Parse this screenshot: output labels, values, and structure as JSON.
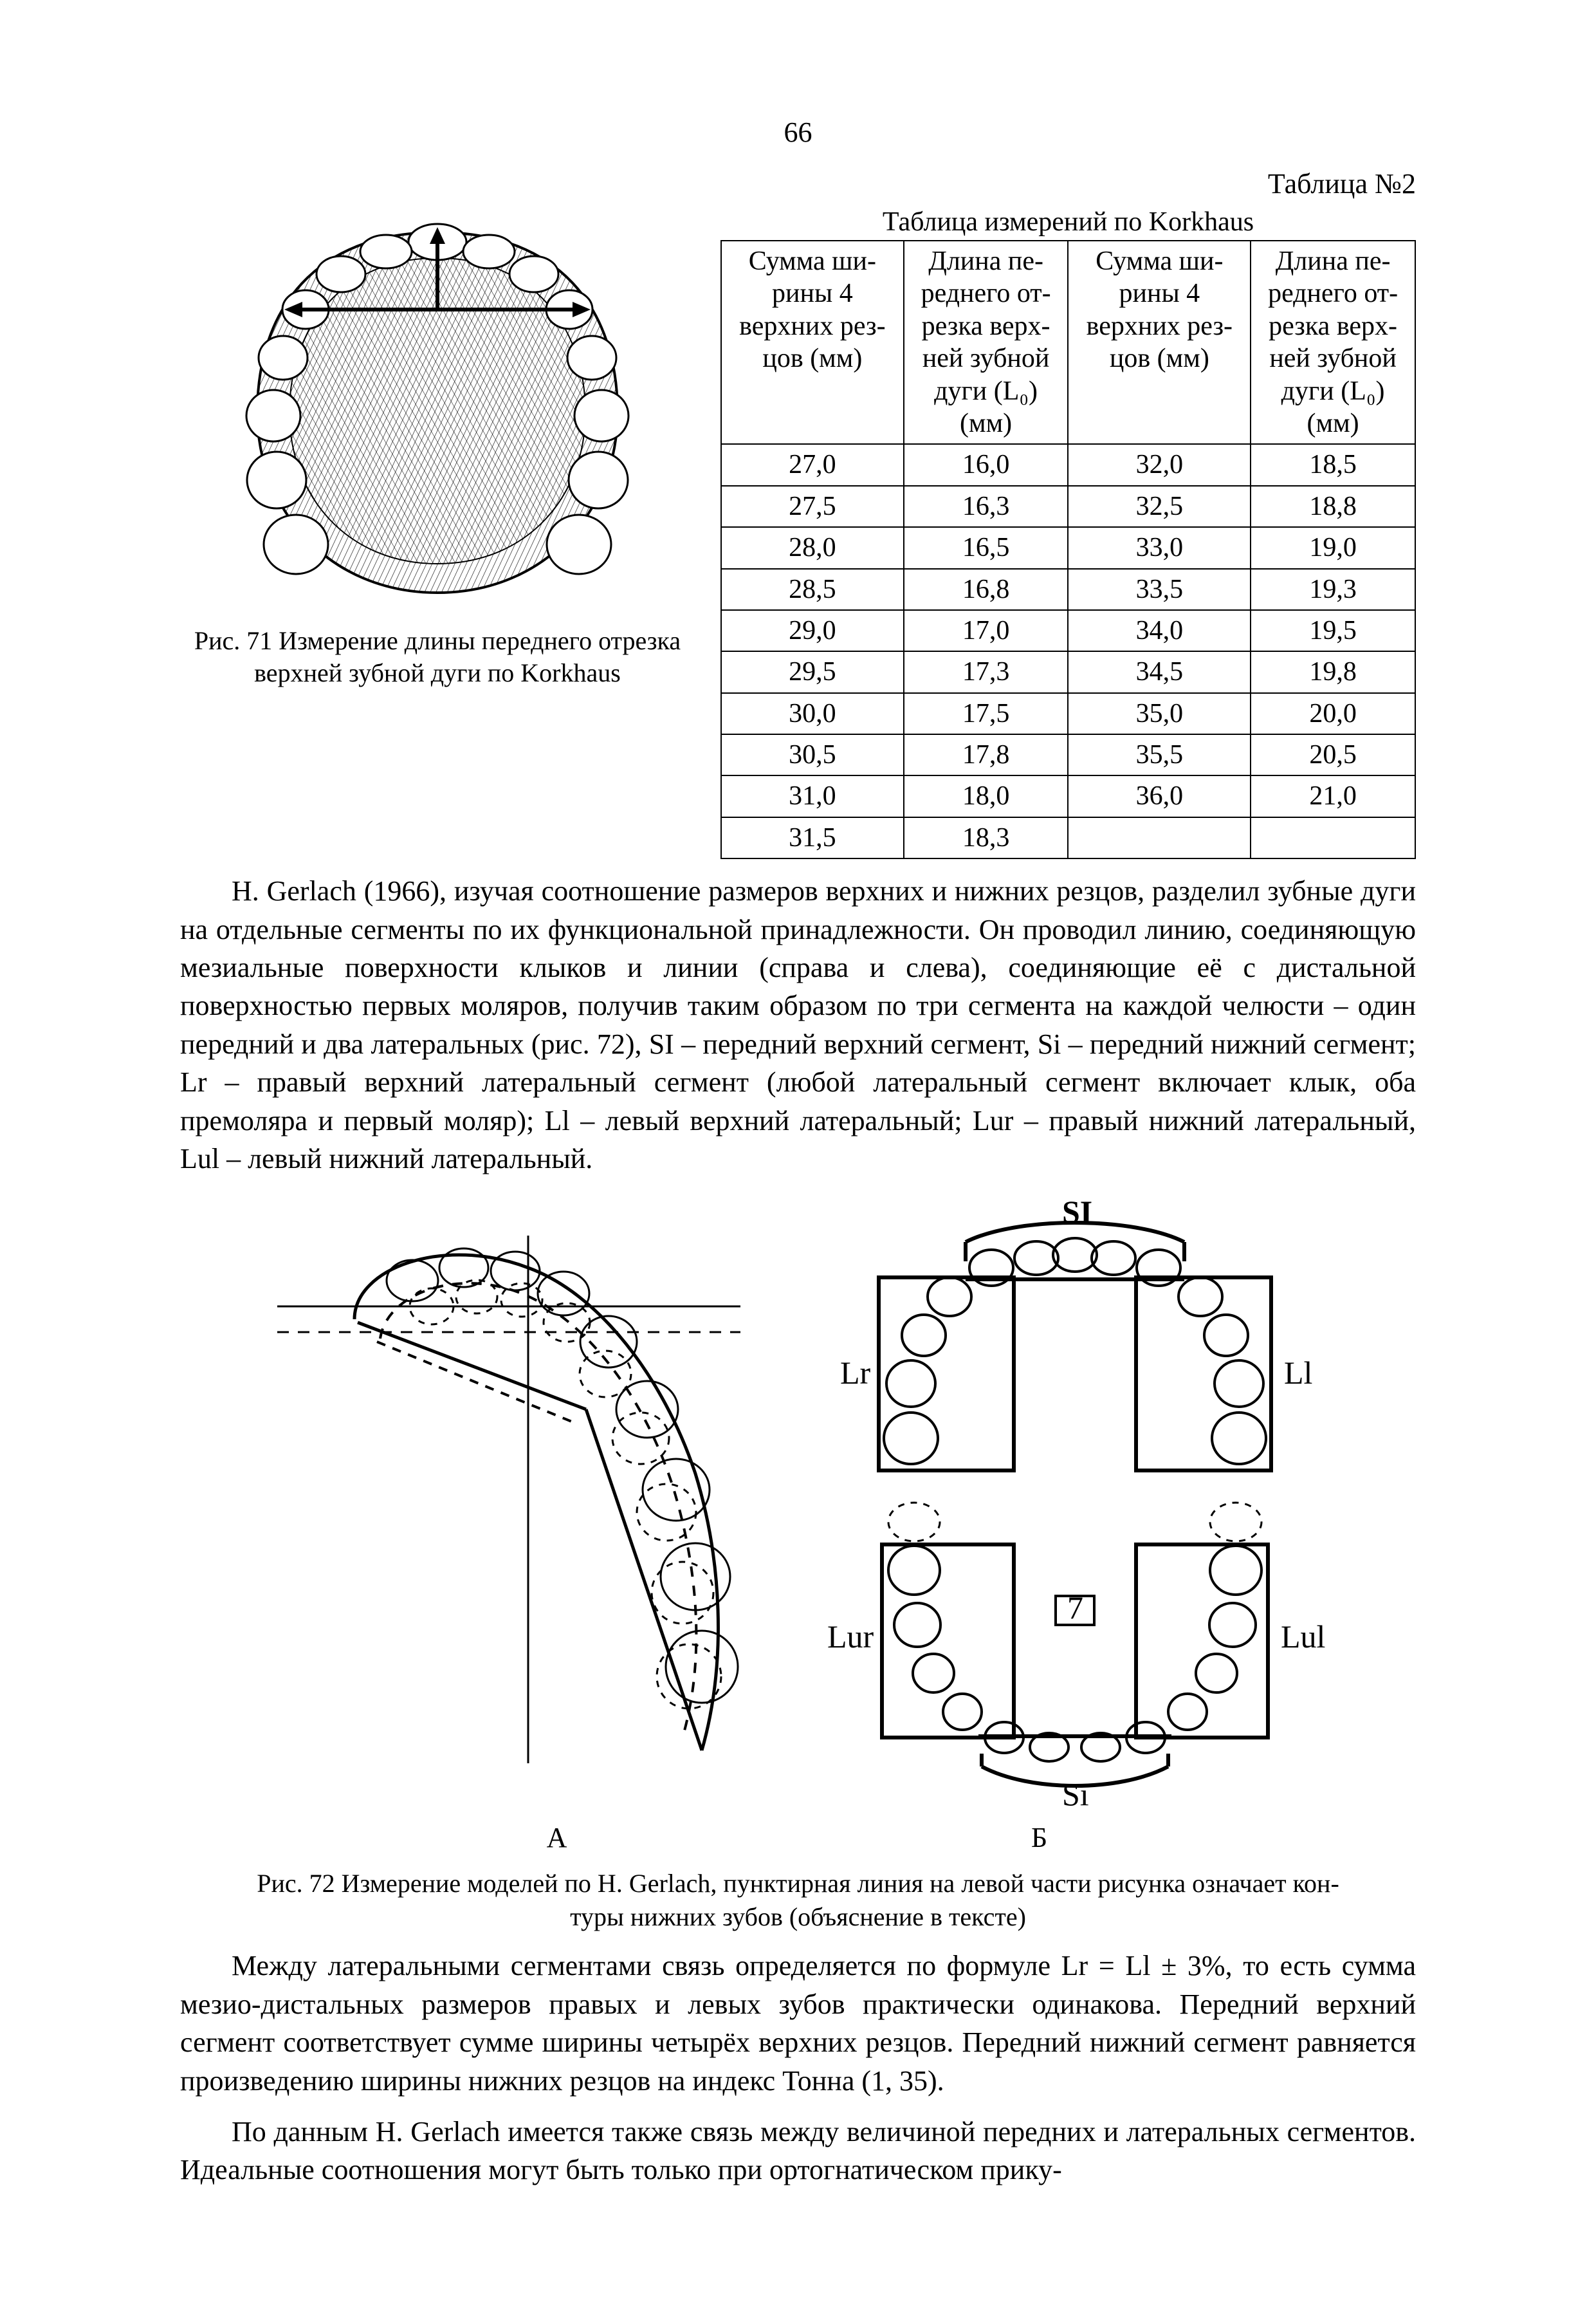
{
  "page_number": "66",
  "table_label": "Таблица №2",
  "fig71_caption_l1": "Рис. 71  Измерение длины переднего отрезка",
  "fig71_caption_l2": "верхней зубной дуги по Korkhaus",
  "table_title": "Таблица измерений по Korkhaus",
  "table": {
    "headers": [
      "Сумма ши-\nрины 4\nверхних рез-\nцов (мм)",
      "Длина пе-\nреднего от-\nрезка верх-\nней зубной\nдуги (L₀)\n(мм)",
      "Сумма ши-\nрины 4\nверхних рез-\nцов (мм)",
      "Длина пе-\nреднего от-\nрезка верх-\nней зубной\nдуги (L₀)\n(мм)"
    ],
    "rows": [
      [
        "27,0",
        "16,0",
        "32,0",
        "18,5"
      ],
      [
        "27,5",
        "16,3",
        "32,5",
        "18,8"
      ],
      [
        "28,0",
        "16,5",
        "33,0",
        "19,0"
      ],
      [
        "28,5",
        "16,8",
        "33,5",
        "19,3"
      ],
      [
        "29,0",
        "17,0",
        "34,0",
        "19,5"
      ],
      [
        "29,5",
        "17,3",
        "34,5",
        "19,8"
      ],
      [
        "30,0",
        "17,5",
        "35,0",
        "20,0"
      ],
      [
        "30,5",
        "17,8",
        "35,5",
        "20,5"
      ],
      [
        "31,0",
        "18,0",
        "36,0",
        "21,0"
      ],
      [
        "31,5",
        "18,3",
        "",
        ""
      ]
    ]
  },
  "para1": "H. Gerlach (1966), изучая соотношение размеров верхних и нижних резцов, разделил зубные дуги на отдельные сегменты по их функциональной принадлежности. Он проводил линию, соединяющую мезиальные поверхности клыков и линии (справа и слева), соединяющие её с дистальной поверхностью первых моляров, получив таким образом по три сегмента на каждой челюсти – один передний и два латеральных (рис. 72),  SI –  передний верхний сегмент, Si – передний нижний сегмент;  Lr – правый верхний латеральный сегмент (любой латеральный сегмент включает клык, оба премоляра и первый моляр); Ll – левый верхний латеральный; Lur – правый нижний латеральный, Lul – левый нижний латеральный.",
  "fig72_labels": {
    "SI": "SI",
    "Lr": "Lr",
    "Ll": "Ll",
    "Lur": "Lur",
    "Lul": "Lul",
    "Si": "Si",
    "A": "А",
    "B": "Б"
  },
  "fig72_caption_l1": "Рис. 72  Измерение моделей по H. Gerlach, пунктирная линия на левой части рисунка означает кон-",
  "fig72_caption_l2": "туры нижних зубов (объяснение в тексте)",
  "para2": "Между латеральными сегментами связь определяется по формуле Lr = Ll ± 3%, то есть сумма мезио-дистальных размеров правых и левых зубов практически одинакова. Передний верхний сегмент соответствует сумме ширины четырёх верхних резцов. Передний нижний сегмент равняется произведению ширины нижних резцов на индекс Тонна (1, 35).",
  "para3": "По данным H. Gerlach  имеется также связь между величиной передних и латеральных сегментов. Идеальные соотношения могут быть только при ортогнатическом прику-"
}
